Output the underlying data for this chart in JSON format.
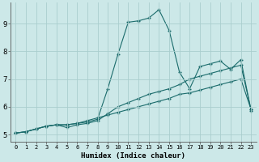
{
  "xlabel": "Humidex (Indice chaleur)",
  "bg_color": "#cce8e8",
  "grid_color": "#aacece",
  "line_color": "#1a6b6b",
  "xlim": [
    -0.5,
    23.5
  ],
  "ylim": [
    4.75,
    9.75
  ],
  "xticks": [
    0,
    1,
    2,
    3,
    4,
    5,
    6,
    7,
    8,
    9,
    10,
    11,
    12,
    13,
    14,
    15,
    16,
    17,
    18,
    19,
    20,
    21,
    22,
    23
  ],
  "yticks": [
    5,
    6,
    7,
    8,
    9
  ],
  "s1_x": [
    0,
    1,
    2,
    3,
    4,
    5,
    6,
    7,
    8,
    9,
    10,
    11,
    12,
    13,
    14,
    15,
    16,
    17,
    18,
    19,
    20,
    21,
    22,
    23
  ],
  "s1_y": [
    5.05,
    5.1,
    5.2,
    5.3,
    5.35,
    5.35,
    5.4,
    5.45,
    5.55,
    6.65,
    7.9,
    9.05,
    9.1,
    9.2,
    9.5,
    8.75,
    7.25,
    6.65,
    7.45,
    7.55,
    7.65,
    7.35,
    7.7,
    5.85
  ],
  "s2_x": [
    0,
    1,
    2,
    3,
    4,
    5,
    6,
    7,
    8,
    9,
    10,
    11,
    12,
    13,
    14,
    15,
    16,
    17,
    18,
    19,
    20,
    21,
    22,
    23
  ],
  "s2_y": [
    5.05,
    5.1,
    5.2,
    5.3,
    5.35,
    5.25,
    5.35,
    5.4,
    5.5,
    5.75,
    6.0,
    6.15,
    6.3,
    6.45,
    6.55,
    6.65,
    6.8,
    7.0,
    7.1,
    7.2,
    7.3,
    7.4,
    7.5,
    5.9
  ],
  "s3_x": [
    0,
    1,
    2,
    3,
    4,
    5,
    6,
    7,
    8,
    9,
    10,
    11,
    12,
    13,
    14,
    15,
    16,
    17,
    18,
    19,
    20,
    21,
    22,
    23
  ],
  "s3_y": [
    5.05,
    5.1,
    5.2,
    5.3,
    5.35,
    5.35,
    5.4,
    5.5,
    5.6,
    5.7,
    5.8,
    5.9,
    6.0,
    6.1,
    6.2,
    6.3,
    6.45,
    6.5,
    6.6,
    6.7,
    6.8,
    6.9,
    7.0,
    5.9
  ]
}
